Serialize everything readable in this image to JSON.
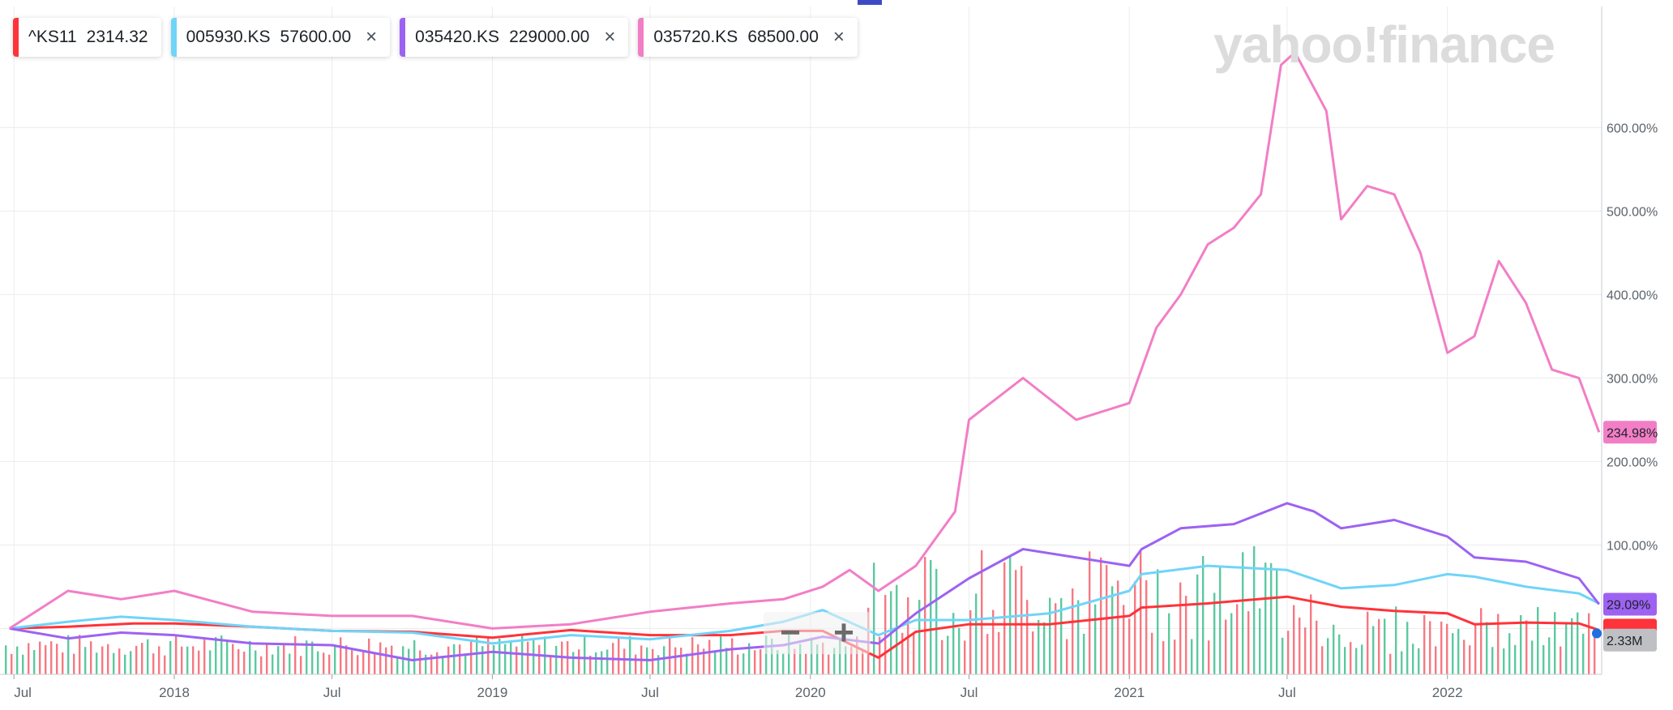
{
  "legend": [
    {
      "symbol": "^KS11",
      "value": "2314.32",
      "color": "#ff333a",
      "closable": false
    },
    {
      "symbol": "005930.KS",
      "value": "57600.00",
      "color": "#70d4f8",
      "closable": true
    },
    {
      "symbol": "035420.KS",
      "value": "229000.00",
      "color": "#9d62f2",
      "closable": true
    },
    {
      "symbol": "035720.KS",
      "value": "68500.00",
      "color": "#f27ec6",
      "closable": true
    }
  ],
  "icons": {
    "close": "×",
    "zoom_out": "−",
    "zoom_in": "+"
  },
  "watermark": "yahoo!finance",
  "chart_data": {
    "type": "line",
    "x_tick_labels": [
      "Jul",
      "2018",
      "Jul",
      "2019",
      "Jul",
      "2020",
      "Jul",
      "2021",
      "Jul",
      "2022"
    ],
    "y_tick_labels": [
      "100.00%",
      "200.00%",
      "300.00%",
      "400.00%",
      "500.00%",
      "600.00%"
    ],
    "ylim": [
      -55,
      745
    ],
    "grid": true,
    "y_axis_position": "right",
    "legend_position": "top-left",
    "series": [
      {
        "name": "^KS11",
        "color": "#ff333a",
        "x": [
          "2017-06-26",
          "2017-09-01",
          "2017-11-15",
          "2018-01-01",
          "2018-04-01",
          "2018-07-01",
          "2018-10-01",
          "2019-01-01",
          "2019-04-01",
          "2019-07-01",
          "2019-10-01",
          "2019-12-01",
          "2020-01-15",
          "2020-03-19",
          "2020-05-01",
          "2020-07-01",
          "2020-10-01",
          "2021-01-01",
          "2021-01-15",
          "2021-04-01",
          "2021-07-01",
          "2021-09-01",
          "2021-11-01",
          "2022-01-01",
          "2022-02-01",
          "2022-04-01",
          "2022-06-01",
          "2022-06-24"
        ],
        "y": [
          0,
          2,
          6,
          6,
          2,
          -3,
          -4,
          -11,
          -2,
          -8,
          -8,
          -3,
          -3,
          -35,
          -4,
          5,
          5,
          15,
          25,
          30,
          38,
          26,
          21,
          18,
          5,
          7,
          6,
          -2
        ]
      },
      {
        "name": "005930.KS",
        "color": "#70d4f8",
        "x": [
          "2017-06-26",
          "2017-09-01",
          "2017-11-01",
          "2018-01-01",
          "2018-04-01",
          "2018-07-01",
          "2018-10-01",
          "2019-01-01",
          "2019-04-01",
          "2019-07-01",
          "2019-10-01",
          "2019-12-01",
          "2020-01-15",
          "2020-03-19",
          "2020-05-01",
          "2020-07-01",
          "2020-10-01",
          "2021-01-01",
          "2021-01-15",
          "2021-04-01",
          "2021-07-01",
          "2021-09-01",
          "2021-11-01",
          "2022-01-01",
          "2022-02-01",
          "2022-04-01",
          "2022-06-01",
          "2022-06-24"
        ],
        "y": [
          0,
          8,
          14,
          10,
          2,
          -3,
          -5,
          -18,
          -8,
          -13,
          -3,
          8,
          22,
          -8,
          10,
          10,
          18,
          45,
          65,
          75,
          70,
          48,
          52,
          65,
          62,
          50,
          42,
          30
        ]
      },
      {
        "name": "035420.KS",
        "color": "#9d62f2",
        "x": [
          "2017-06-26",
          "2017-09-01",
          "2017-11-01",
          "2018-01-01",
          "2018-04-01",
          "2018-07-01",
          "2018-10-01",
          "2019-01-01",
          "2019-04-01",
          "2019-07-01",
          "2019-10-01",
          "2019-12-01",
          "2020-01-15",
          "2020-03-19",
          "2020-05-01",
          "2020-07-01",
          "2020-09-01",
          "2021-01-01",
          "2021-01-15",
          "2021-03-01",
          "2021-05-01",
          "2021-07-01",
          "2021-08-01",
          "2021-09-01",
          "2021-11-01",
          "2022-01-01",
          "2022-02-01",
          "2022-04-01",
          "2022-06-01",
          "2022-06-24"
        ],
        "y": [
          0,
          -12,
          -5,
          -8,
          -18,
          -20,
          -38,
          -28,
          -35,
          -38,
          -25,
          -20,
          -10,
          -18,
          18,
          60,
          95,
          75,
          95,
          120,
          125,
          150,
          140,
          120,
          130,
          110,
          85,
          80,
          60,
          29
        ]
      },
      {
        "name": "035720.KS",
        "color": "#f27ec6",
        "x": [
          "2017-06-26",
          "2017-09-01",
          "2017-11-01",
          "2018-01-01",
          "2018-04-01",
          "2018-07-01",
          "2018-10-01",
          "2019-01-01",
          "2019-04-01",
          "2019-07-01",
          "2019-10-01",
          "2019-12-01",
          "2020-01-15",
          "2020-02-15",
          "2020-03-19",
          "2020-05-01",
          "2020-06-15",
          "2020-07-01",
          "2020-09-01",
          "2020-11-01",
          "2021-01-01",
          "2021-02-01",
          "2021-03-01",
          "2021-04-01",
          "2021-05-01",
          "2021-06-01",
          "2021-06-24",
          "2021-07-10",
          "2021-08-15",
          "2021-09-01",
          "2021-10-01",
          "2021-11-01",
          "2021-12-01",
          "2022-01-01",
          "2022-02-01",
          "2022-03-01",
          "2022-04-01",
          "2022-05-01",
          "2022-06-01",
          "2022-06-24"
        ],
        "y": [
          0,
          45,
          35,
          45,
          20,
          15,
          15,
          0,
          5,
          20,
          30,
          35,
          50,
          70,
          45,
          75,
          140,
          250,
          300,
          250,
          270,
          360,
          400,
          460,
          480,
          520,
          675,
          690,
          620,
          490,
          530,
          520,
          450,
          330,
          350,
          440,
          390,
          310,
          300,
          235
        ]
      }
    ],
    "end_labels": [
      {
        "series": "035720.KS",
        "text": "234.98%",
        "color": "#f27ec6"
      },
      {
        "series": "035420.KS",
        "text": "29.09%",
        "color": "#9d62f2"
      },
      {
        "series": "^KS11",
        "text": "",
        "color": "#ff333a"
      },
      {
        "series": "volume",
        "text": "2.33M",
        "color": "#bfc0c4"
      }
    ]
  }
}
